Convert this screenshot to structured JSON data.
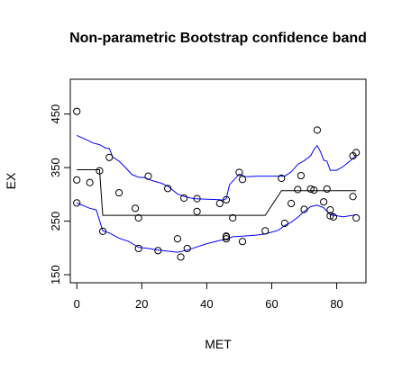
{
  "chart_data": {
    "type": "scatter",
    "title": "Non-parametric Bootstrap confidence band",
    "xlabel": "MET",
    "ylabel": "EX",
    "xlim": [
      -2,
      89
    ],
    "ylim": [
      135,
      515
    ],
    "x_ticks": [
      0,
      20,
      40,
      60,
      80
    ],
    "y_ticks": [
      150,
      250,
      350,
      450
    ],
    "grid": false,
    "legend": "none",
    "colors": {
      "points": "#000000",
      "band": "#0000ff",
      "fit": "#000000"
    },
    "points": [
      [
        0,
        455
      ],
      [
        0,
        327
      ],
      [
        0,
        284
      ],
      [
        4,
        322
      ],
      [
        7,
        344
      ],
      [
        8,
        231
      ],
      [
        10,
        369
      ],
      [
        13,
        303
      ],
      [
        18,
        274
      ],
      [
        19,
        199
      ],
      [
        19,
        256
      ],
      [
        22,
        334
      ],
      [
        25,
        195
      ],
      [
        28,
        311
      ],
      [
        31,
        217
      ],
      [
        32,
        183
      ],
      [
        33,
        293
      ],
      [
        34,
        199
      ],
      [
        37,
        292
      ],
      [
        37,
        268
      ],
      [
        44,
        283
      ],
      [
        46,
        222
      ],
      [
        46,
        217
      ],
      [
        46,
        221
      ],
      [
        46,
        290
      ],
      [
        48,
        256
      ],
      [
        50,
        341
      ],
      [
        51,
        212
      ],
      [
        51,
        328
      ],
      [
        58,
        232
      ],
      [
        63,
        330
      ],
      [
        64,
        246
      ],
      [
        66,
        283
      ],
      [
        68,
        309
      ],
      [
        69,
        335
      ],
      [
        70,
        272
      ],
      [
        72,
        310
      ],
      [
        73,
        308
      ],
      [
        74,
        420
      ],
      [
        76,
        286
      ],
      [
        77,
        310
      ],
      [
        78,
        260
      ],
      [
        78,
        271
      ],
      [
        79,
        258
      ],
      [
        85,
        296
      ],
      [
        85,
        372
      ],
      [
        86,
        256
      ],
      [
        86,
        378
      ]
    ],
    "fit_line": [
      [
        0,
        346
      ],
      [
        7,
        346
      ],
      [
        8,
        261
      ],
      [
        58,
        261
      ],
      [
        63,
        307
      ],
      [
        86,
        307
      ]
    ],
    "upper_band": [
      [
        0,
        410
      ],
      [
        3,
        402
      ],
      [
        5,
        396
      ],
      [
        7,
        393
      ],
      [
        9,
        386
      ],
      [
        10,
        386
      ],
      [
        11,
        370
      ],
      [
        13,
        362
      ],
      [
        15,
        350
      ],
      [
        17,
        337
      ],
      [
        19,
        332
      ],
      [
        21,
        331
      ],
      [
        23,
        326
      ],
      [
        26,
        321
      ],
      [
        28,
        315
      ],
      [
        31,
        301
      ],
      [
        33,
        296
      ],
      [
        36,
        292
      ],
      [
        40,
        291
      ],
      [
        44,
        290
      ],
      [
        45,
        289
      ],
      [
        46,
        292
      ],
      [
        47,
        318
      ],
      [
        50,
        338
      ],
      [
        52,
        333
      ],
      [
        56,
        334
      ],
      [
        60,
        334
      ],
      [
        64,
        334
      ],
      [
        66,
        342
      ],
      [
        68,
        356
      ],
      [
        70,
        363
      ],
      [
        72,
        372
      ],
      [
        73,
        384
      ],
      [
        74,
        391
      ],
      [
        75,
        380
      ],
      [
        76,
        364
      ],
      [
        77,
        362
      ],
      [
        78,
        345
      ],
      [
        80,
        345
      ],
      [
        82,
        352
      ],
      [
        84,
        362
      ],
      [
        86,
        373
      ]
    ],
    "lower_band": [
      [
        0,
        284
      ],
      [
        4,
        274
      ],
      [
        6,
        271
      ],
      [
        8,
        232
      ],
      [
        10,
        228
      ],
      [
        13,
        218
      ],
      [
        16,
        212
      ],
      [
        19,
        201
      ],
      [
        22,
        199
      ],
      [
        25,
        196
      ],
      [
        28,
        194
      ],
      [
        31,
        192
      ],
      [
        34,
        196
      ],
      [
        37,
        202
      ],
      [
        40,
        208
      ],
      [
        44,
        214
      ],
      [
        46,
        216
      ],
      [
        48,
        221
      ],
      [
        51,
        222
      ],
      [
        55,
        224
      ],
      [
        58,
        226
      ],
      [
        62,
        233
      ],
      [
        64,
        242
      ],
      [
        66,
        248
      ],
      [
        68,
        257
      ],
      [
        70,
        268
      ],
      [
        72,
        277
      ],
      [
        74,
        280
      ],
      [
        76,
        275
      ],
      [
        78,
        262
      ],
      [
        82,
        258
      ],
      [
        86,
        262
      ]
    ]
  }
}
